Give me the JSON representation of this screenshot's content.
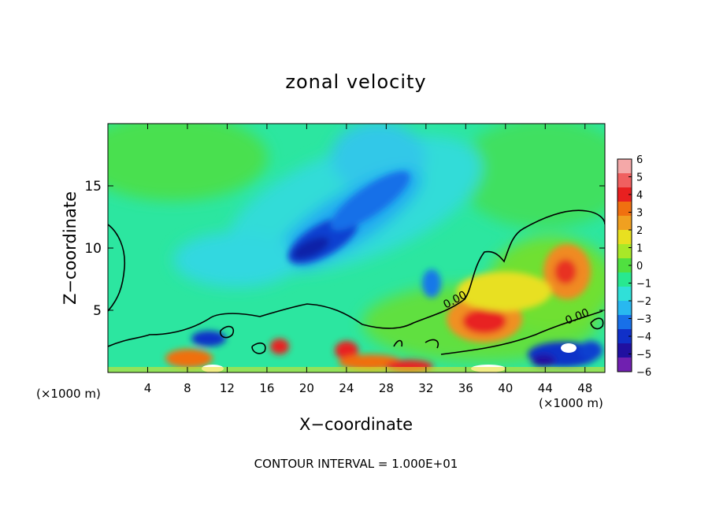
{
  "chart_data": {
    "type": "heatmap",
    "title": "zonal velocity",
    "xlabel": "X−coordinate",
    "ylabel": "Z−coordinate",
    "x_unit_left": "(×1000 m)",
    "x_unit_right": "(×1000 m)",
    "footer": "CONTOUR INTERVAL = 1.000E+01",
    "xlim": [
      0,
      50
    ],
    "ylim": [
      0,
      20
    ],
    "x_ticks": [
      4,
      8,
      12,
      16,
      20,
      24,
      28,
      32,
      36,
      40,
      44,
      48
    ],
    "x_tick_labels": [
      "4",
      "8",
      "12",
      "16",
      "20",
      "24",
      "28",
      "32",
      "36",
      "40",
      "44",
      "48"
    ],
    "y_ticks": [
      5,
      10,
      15
    ],
    "y_tick_labels": [
      "5",
      "10",
      "15"
    ],
    "colorbar": {
      "range": [
        -6,
        6
      ],
      "labels": [
        "6",
        "5",
        "4",
        "3",
        "2",
        "1",
        "0",
        "−1",
        "−2",
        "−3",
        "−4",
        "−5",
        "−6"
      ],
      "colors": [
        "#f4a8a8",
        "#f06060",
        "#e82020",
        "#f07010",
        "#f0a020",
        "#e8e020",
        "#a8e828",
        "#50e040",
        "#28e890",
        "#30e0d8",
        "#28b8f0",
        "#1870e8",
        "#1030c8",
        "#2010a0",
        "#7020b0"
      ]
    },
    "contour_labels": [
      "0.00",
      "0.00"
    ],
    "features": [
      {
        "x": 21,
        "z": 10.5,
        "value": -4.5
      },
      {
        "x": 25,
        "z": 12,
        "value": -3.5
      },
      {
        "x": 38.5,
        "z": 4.2,
        "value": 4
      },
      {
        "x": 46,
        "z": 8,
        "value": 3
      },
      {
        "x": 10,
        "z": 3,
        "value": -3.5
      },
      {
        "x": 45,
        "z": 2,
        "value": -5
      }
    ]
  }
}
